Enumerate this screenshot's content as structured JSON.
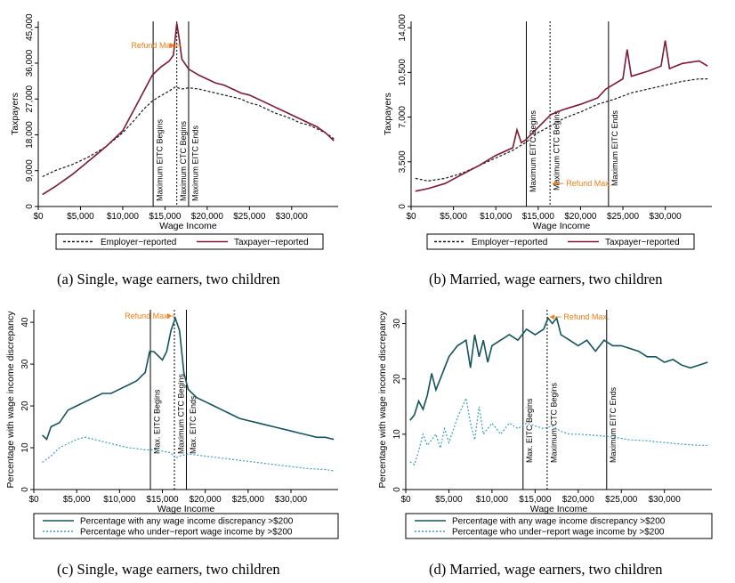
{
  "chart_data": [
    {
      "id": "a",
      "type": "line",
      "caption": "(a) Single, wage earners, two children",
      "ylabel": "Taxpayers",
      "xlabel": "Wage Income",
      "xlim": [
        0,
        35500
      ],
      "ylim": [
        0,
        46500
      ],
      "xticks": [
        0,
        5000,
        10000,
        15000,
        20000,
        25000,
        30000
      ],
      "xtick_labels": [
        "$0",
        "$5,000",
        "$10,000",
        "$15,000",
        "$20,000",
        "$25,000",
        "$30,000"
      ],
      "yticks": [
        0,
        9000,
        18000,
        27000,
        36000,
        45000
      ],
      "ytick_labels": [
        "0",
        "9,000",
        "18,000",
        "27,000",
        "36,000",
        "45,000"
      ],
      "series": [
        {
          "name": "Employer−reported",
          "color": "#1a1a1a",
          "dash": "3,2",
          "x": [
            500,
            2000,
            4000,
            6000,
            8000,
            10000,
            11500,
            12500,
            13500,
            14500,
            15500,
            16200,
            17000,
            17800,
            19000,
            20000,
            21000,
            22000,
            23000,
            24000,
            25000,
            26000,
            27000,
            28000,
            29000,
            30000,
            31000,
            32000,
            33000,
            34000,
            35000
          ],
          "y": [
            7500,
            9000,
            10500,
            12500,
            15000,
            18500,
            22000,
            24500,
            26500,
            27800,
            29000,
            30000,
            29500,
            29800,
            29500,
            29000,
            28500,
            28000,
            27500,
            27000,
            26000,
            25500,
            24500,
            23500,
            22800,
            22000,
            21000,
            20500,
            19500,
            18500,
            17000
          ]
        },
        {
          "name": "Taxpayer−reported",
          "color": "#7a1a34",
          "x": [
            500,
            2000,
            4000,
            6000,
            8000,
            10000,
            11500,
            12500,
            13500,
            14500,
            15500,
            16000,
            16400,
            16700,
            17000,
            17800,
            19000,
            20000,
            21000,
            22000,
            23000,
            24000,
            25000,
            26000,
            27000,
            28000,
            29000,
            30000,
            31000,
            32000,
            33000,
            34000,
            35000
          ],
          "y": [
            3000,
            5000,
            8000,
            11500,
            15000,
            19000,
            25000,
            29000,
            33000,
            35000,
            36500,
            38000,
            46000,
            42000,
            37000,
            34500,
            33000,
            32000,
            31000,
            30500,
            29500,
            28500,
            28000,
            27000,
            26000,
            25000,
            24000,
            23000,
            22000,
            21000,
            20000,
            18500,
            16500
          ]
        }
      ],
      "vlines": [
        {
          "x": 13600,
          "label": "Maximum EITC Begins",
          "style": "solid"
        },
        {
          "x": 16400,
          "label": "Maximum CTC Begins",
          "style": "dashed"
        },
        {
          "x": 17800,
          "label": "Maximum EITC Ends",
          "style": "solid"
        }
      ],
      "annotation": {
        "text": "Refund Max.",
        "color": "#f07f1a",
        "x": 16300,
        "y": 40500,
        "text_x": 11000,
        "text_y": 40500
      },
      "legend": "bottom"
    },
    {
      "id": "b",
      "type": "line",
      "caption": "(b) Married, wage earners, two children",
      "ylabel": "Taxpayers",
      "xlabel": "Wage Income",
      "xlim": [
        0,
        35500
      ],
      "ylim": [
        0,
        14500
      ],
      "xticks": [
        0,
        5000,
        10000,
        15000,
        20000,
        25000,
        30000
      ],
      "xtick_labels": [
        "$0",
        "$5,000",
        "$10,000",
        "$15,000",
        "$20,000",
        "$25,000",
        "$30,000"
      ],
      "yticks": [
        0,
        3500,
        7000,
        10500,
        14000
      ],
      "ytick_labels": [
        "0",
        "3,500",
        "7,000",
        "10,500",
        "14,000"
      ],
      "series": [
        {
          "name": "Employer−reported",
          "color": "#1a1a1a",
          "dash": "3,2",
          "x": [
            500,
            2000,
            4000,
            6000,
            8000,
            10000,
            12000,
            13500,
            15000,
            16500,
            18000,
            20000,
            22000,
            24000,
            26000,
            28000,
            30000,
            32000,
            34000,
            35000
          ],
          "y": [
            2200,
            2000,
            2200,
            2600,
            3200,
            3800,
            4400,
            5000,
            5800,
            6300,
            6900,
            7400,
            8000,
            8400,
            8900,
            9200,
            9500,
            9800,
            10000,
            10000
          ]
        },
        {
          "name": "Taxpayer−reported",
          "color": "#7a1a34",
          "x": [
            500,
            2000,
            4000,
            6000,
            8000,
            10000,
            12000,
            12500,
            13000,
            13500,
            15000,
            16500,
            18000,
            20000,
            22000,
            23000,
            24000,
            25000,
            25500,
            26000,
            28000,
            29500,
            30000,
            30500,
            32000,
            34000,
            35000
          ],
          "y": [
            1200,
            1400,
            1800,
            2500,
            3200,
            4000,
            4600,
            6000,
            5000,
            5200,
            6200,
            7200,
            7600,
            8000,
            8500,
            9200,
            9600,
            10000,
            12300,
            10200,
            10600,
            11000,
            13000,
            10800,
            11200,
            11400,
            11000
          ]
        }
      ],
      "vlines": [
        {
          "x": 13600,
          "label": "Maximum EITC Begins",
          "style": "solid"
        },
        {
          "x": 16400,
          "label": "Maximum CTC Begins",
          "style": "dashed"
        },
        {
          "x": 23300,
          "label": "Maximum EITC Ends",
          "style": "solid"
        }
      ],
      "annotation": {
        "text": "Refund Max.",
        "color": "#f07f1a",
        "x": 16450,
        "y": 1800,
        "text_x": 18300,
        "text_y": 1800
      },
      "legend": "bottom"
    },
    {
      "id": "c",
      "type": "line",
      "caption": "(c) Single, wage earners, two children",
      "ylabel": "Percentage with wage income discrepancy",
      "xlabel": "Wage Income",
      "xlim": [
        0,
        35500
      ],
      "ylim": [
        0,
        43
      ],
      "xticks": [
        0,
        5000,
        10000,
        15000,
        20000,
        25000,
        30000
      ],
      "xtick_labels": [
        "$0",
        "$5,000",
        "$10,000",
        "$15,000",
        "$20,000",
        "$25,000",
        "$30,000"
      ],
      "yticks": [
        0,
        10,
        20,
        30,
        40
      ],
      "ytick_labels": [
        "0",
        "10",
        "20",
        "30",
        "40"
      ],
      "series": [
        {
          "name": "Percentage with any wage income discrepancy >$200",
          "color": "#15535c",
          "x": [
            1000,
            1500,
            2000,
            3000,
            4000,
            5000,
            6000,
            7000,
            8000,
            9000,
            10000,
            11000,
            12000,
            13000,
            13500,
            14000,
            15000,
            15500,
            16000,
            16500,
            17000,
            17500,
            18000,
            19000,
            20000,
            21000,
            22000,
            23000,
            24000,
            25000,
            26000,
            27000,
            28000,
            29000,
            30000,
            31000,
            32000,
            33000,
            34000,
            35000
          ],
          "y": [
            13,
            12,
            15,
            16,
            19,
            20,
            21,
            22,
            23,
            23,
            24,
            25,
            26,
            28,
            33,
            33,
            31,
            33,
            38,
            41,
            38,
            28,
            24,
            22,
            21,
            20,
            19,
            18,
            17,
            16.5,
            16,
            15.5,
            15,
            14.5,
            14,
            13.5,
            13,
            12.5,
            12.5,
            12
          ]
        },
        {
          "name": "Percentage who under−report wage income by >$200",
          "color": "#3aa0be",
          "dash": "2,2",
          "x": [
            1000,
            2000,
            3000,
            4000,
            5000,
            6000,
            7000,
            8000,
            9000,
            10000,
            11000,
            12000,
            13000,
            14000,
            15000,
            16000,
            16500,
            17000,
            18000,
            20000,
            22000,
            24000,
            26000,
            28000,
            30000,
            32000,
            34000,
            35000
          ],
          "y": [
            6.5,
            8,
            10,
            11,
            12,
            12.5,
            12,
            11.5,
            11,
            10.5,
            10,
            9.8,
            9.5,
            9.5,
            9.2,
            8.8,
            7.5,
            8,
            8.5,
            8,
            7.5,
            7,
            6.5,
            6,
            5.5,
            5,
            4.8,
            4.5
          ]
        }
      ],
      "vlines": [
        {
          "x": 13600,
          "label": "Max. EITC Begins",
          "style": "solid"
        },
        {
          "x": 16400,
          "label": "Maximum CTC Begins",
          "style": "dashed"
        },
        {
          "x": 17800,
          "label": "Max. EITC Ends",
          "style": "solid"
        }
      ],
      "annotation": {
        "text": "Refund Max.",
        "color": "#f07f1a",
        "x": 16300,
        "y": 41.5,
        "text_x": 10600,
        "text_y": 41.5
      },
      "legend": "bottom"
    },
    {
      "id": "d",
      "type": "line",
      "caption": "(d) Married, wage earners, two children",
      "ylabel": "Percentage with wage income discrepancy",
      "xlabel": "Wage Income",
      "xlim": [
        0,
        35500
      ],
      "ylim": [
        0,
        32.5
      ],
      "xticks": [
        0,
        5000,
        10000,
        15000,
        20000,
        25000,
        30000
      ],
      "xtick_labels": [
        "$0",
        "$5,000",
        "$10,000",
        "$15,000",
        "$20,000",
        "$25,000",
        "$30,000"
      ],
      "yticks": [
        0,
        10,
        20,
        30
      ],
      "ytick_labels": [
        "0",
        "10",
        "20",
        "30"
      ],
      "series": [
        {
          "name": "Percentage with any wage income discrepancy >$200",
          "color": "#15535c",
          "x": [
            500,
            1000,
            1500,
            2000,
            2500,
            3000,
            3500,
            4000,
            5000,
            6000,
            7000,
            7500,
            8000,
            8500,
            9000,
            9500,
            10000,
            11000,
            12000,
            13000,
            14000,
            15000,
            16000,
            16500,
            17000,
            17500,
            18000,
            19000,
            20000,
            21000,
            22000,
            23000,
            24000,
            25000,
            26000,
            27000,
            28000,
            29000,
            30000,
            31000,
            32000,
            33000,
            34000,
            35000
          ],
          "y": [
            12.5,
            13.5,
            16,
            14.5,
            17,
            21,
            18,
            20,
            24,
            26,
            27,
            22,
            28,
            24,
            27,
            23,
            26,
            27,
            28,
            27,
            29,
            28,
            29,
            31,
            30,
            31,
            28,
            27,
            26,
            27,
            25,
            27,
            26,
            26,
            25.5,
            25,
            24,
            24,
            23,
            23.5,
            22.5,
            22,
            22.5,
            23
          ]
        },
        {
          "name": "Percentage who under−report wage income by >$200",
          "color": "#3aa0be",
          "dash": "2,2",
          "x": [
            500,
            1000,
            1500,
            2000,
            2500,
            3000,
            3500,
            4000,
            4500,
            5000,
            6000,
            7000,
            7500,
            8000,
            8500,
            9000,
            10000,
            11000,
            12000,
            13000,
            14000,
            15000,
            16000,
            17000,
            18000,
            19000,
            20000,
            22000,
            24000,
            26000,
            28000,
            30000,
            32000,
            34000,
            35000
          ],
          "y": [
            5,
            4.5,
            7,
            10,
            8,
            9,
            10,
            7.5,
            11,
            8.5,
            13,
            16.5,
            12,
            9,
            15,
            10,
            12,
            10,
            12,
            11,
            12,
            11.5,
            11,
            11.5,
            10.5,
            10,
            10,
            9.8,
            9.5,
            9,
            8.8,
            8.5,
            8.2,
            8,
            8
          ]
        }
      ],
      "vlines": [
        {
          "x": 13600,
          "label": "Max. EITC Begins",
          "style": "solid"
        },
        {
          "x": 16400,
          "label": "Maximum CTC Begins",
          "style": "dashed"
        },
        {
          "x": 23300,
          "label": "Maximum EITC Ends",
          "style": "solid"
        }
      ],
      "annotation": {
        "text": "Refund Max.",
        "color": "#f07f1a",
        "x": 16500,
        "y": 31.2,
        "text_x": 18300,
        "text_y": 31.2
      },
      "legend": "bottom"
    }
  ]
}
